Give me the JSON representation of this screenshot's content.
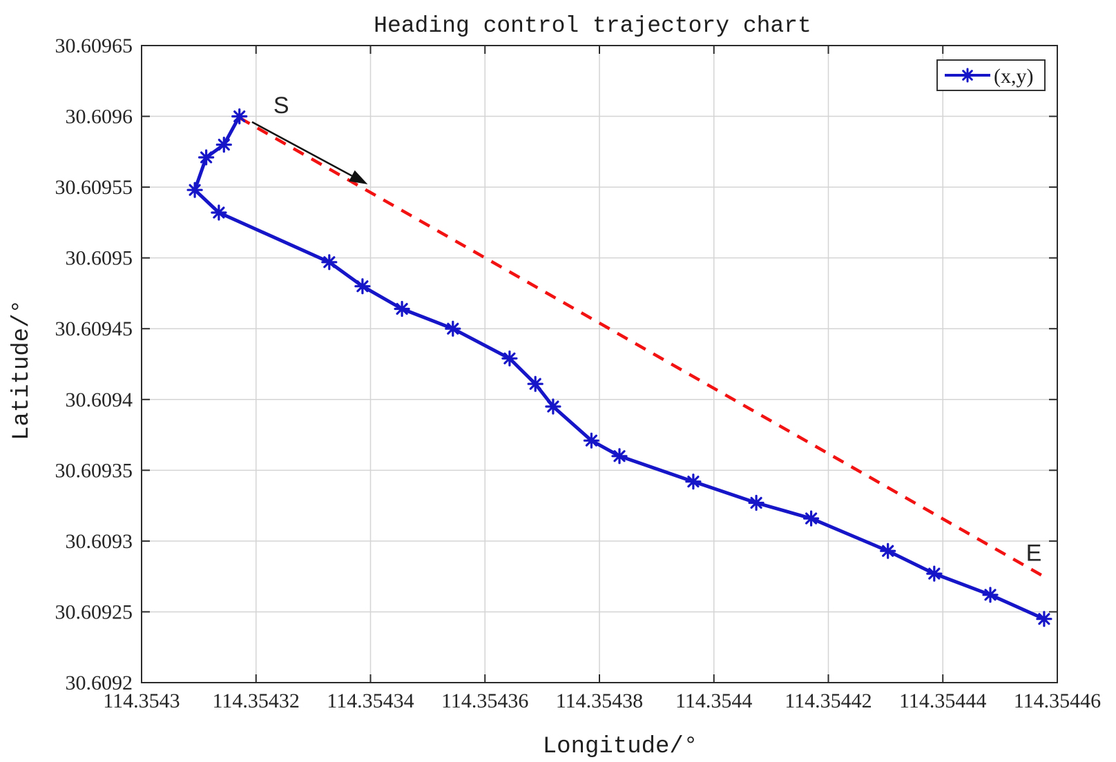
{
  "chart_data": {
    "type": "line",
    "title": "Heading control trajectory chart",
    "xlabel": "Longitude/°",
    "ylabel": "Latitude/°",
    "xlim": [
      114.3543,
      114.35446
    ],
    "ylim": [
      30.6092,
      30.60965
    ],
    "xticks": [
      114.3543,
      114.35432,
      114.35434,
      114.35436,
      114.35438,
      114.3544,
      114.35442,
      114.35444,
      114.35446
    ],
    "xtick_labels": [
      "114.3543",
      "114.35432",
      "114.35434",
      "114.35436",
      "114.35438",
      "114.3544",
      "114.35442",
      "114.35444",
      "114.35446"
    ],
    "yticks": [
      30.6092,
      30.60925,
      30.6093,
      30.60935,
      30.6094,
      30.60945,
      30.6095,
      30.60955,
      30.6096,
      30.60965
    ],
    "ytick_labels": [
      "30.6092",
      "30.60925",
      "30.6093",
      "30.60935",
      "30.6094",
      "30.60945",
      "30.6095",
      "30.60955",
      "30.6096",
      "30.60965"
    ],
    "grid": true,
    "legend": {
      "position": "top-right",
      "entries": [
        {
          "label": "(x,y)",
          "series": "trajectory",
          "marker": "asterisk"
        }
      ]
    },
    "series": [
      {
        "name": "trajectory",
        "label": "(x,y)",
        "style": "solid-with-asterisk-markers",
        "color": "#1616c8",
        "points": [
          [
            114.3543171,
            30.6096
          ],
          [
            114.3543144,
            30.60958
          ],
          [
            114.3543113,
            30.609571
          ],
          [
            114.3543093,
            30.609548
          ],
          [
            114.3543135,
            30.609532
          ],
          [
            114.3543328,
            30.609497
          ],
          [
            114.3543386,
            30.60948
          ],
          [
            114.3543455,
            30.609464
          ],
          [
            114.3543544,
            30.60945
          ],
          [
            114.3543643,
            30.609429
          ],
          [
            114.3543688,
            30.609411
          ],
          [
            114.3543719,
            30.609395
          ],
          [
            114.3543786,
            30.609371
          ],
          [
            114.3543835,
            30.60936
          ],
          [
            114.3543964,
            30.609342
          ],
          [
            114.3544074,
            30.609327
          ],
          [
            114.354417,
            30.609316
          ],
          [
            114.3544304,
            30.609293
          ],
          [
            114.3544385,
            30.609277
          ],
          [
            114.3544483,
            30.609262
          ],
          [
            114.3544577,
            30.609245
          ]
        ]
      },
      {
        "name": "start-end-reference",
        "style": "dashed",
        "color": "#f21212",
        "points": [
          [
            114.3543171,
            30.609599
          ],
          [
            114.3544572,
            30.609276
          ]
        ]
      }
    ],
    "annotations": [
      {
        "type": "text",
        "label": "S",
        "x": 114.3543244,
        "y": 30.609608
      },
      {
        "type": "text",
        "label": "E",
        "x": 114.3544559,
        "y": 30.609292
      },
      {
        "type": "arrow",
        "from": [
          114.3543193,
          30.609596
        ],
        "to": [
          114.3543395,
          30.609552
        ]
      }
    ]
  },
  "colors": {
    "series": "#1616c8",
    "reference": "#f21212",
    "grid": "#d4d4d4",
    "axis": "#2b2b2b",
    "text": "#262626",
    "arrow": "#111111",
    "background": "#ffffff"
  }
}
